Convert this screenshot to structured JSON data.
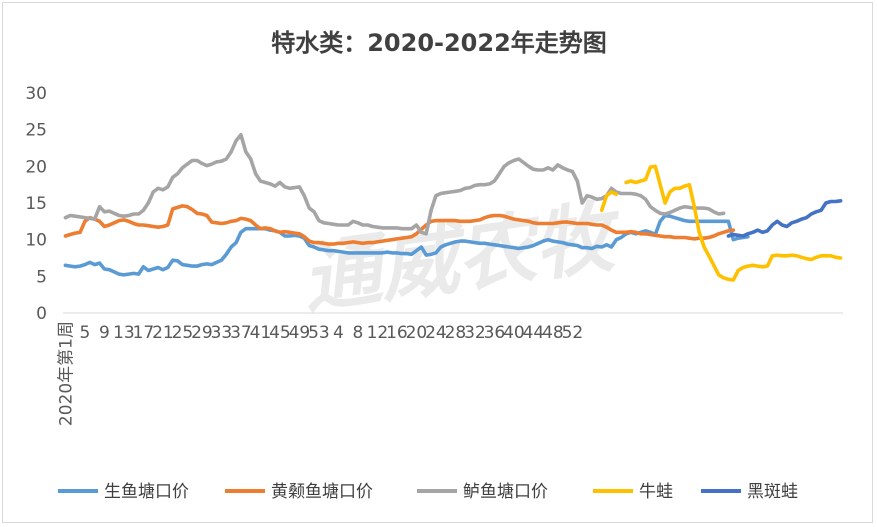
{
  "chart_data": {
    "type": "line",
    "title": "特水类：2020-2022年走势图",
    "watermark": "通威农牧",
    "xlabel": "",
    "ylabel": "",
    "ylim": [
      0,
      30
    ],
    "y_ticks": [
      "0",
      "5",
      "10",
      "15",
      "20",
      "25",
      "30"
    ],
    "x_first_label": "2020年第1周",
    "x_tick_labels": [
      "5",
      "9",
      "13",
      "17",
      "21",
      "25",
      "29",
      "33",
      "37",
      "41",
      "45",
      "49",
      "53",
      "4",
      "8",
      "12",
      "16",
      "20",
      "24",
      "28",
      "32",
      "36",
      "40",
      "44",
      "48",
      "52"
    ],
    "n_points": 160,
    "grid": false,
    "legend_position": "bottom",
    "series": [
      {
        "name": "生鱼塘口价",
        "color": "#5b9bd5",
        "values": [
          6.5,
          6.4,
          6.3,
          6.4,
          6.6,
          6.9,
          6.6,
          6.8,
          6.0,
          5.9,
          5.6,
          5.3,
          5.2,
          5.3,
          5.4,
          5.3,
          6.3,
          5.8,
          6.0,
          6.2,
          5.9,
          6.2,
          7.2,
          7.1,
          6.6,
          6.5,
          6.4,
          6.4,
          6.6,
          6.7,
          6.6,
          6.9,
          7.2,
          8.0,
          9.0,
          9.6,
          11.0,
          11.5,
          11.5,
          11.5,
          11.5,
          11.5,
          11.3,
          11.2,
          11.0,
          10.5,
          10.5,
          10.6,
          10.5,
          10.2,
          9.2,
          9.0,
          8.7,
          8.6,
          8.5,
          8.5,
          8.4,
          8.3,
          8.2,
          8.2,
          8.2,
          8.2,
          8.2,
          8.2,
          8.2,
          8.2,
          8.3,
          8.2,
          8.2,
          8.1,
          8.1,
          8.0,
          8.5,
          9.0,
          7.9,
          8.0,
          8.2,
          9.0,
          9.3,
          9.5,
          9.7,
          9.8,
          9.8,
          9.7,
          9.6,
          9.5,
          9.5,
          9.4,
          9.3,
          9.2,
          9.1,
          9.0,
          8.9,
          8.8,
          8.9,
          9.0,
          9.2,
          9.5,
          9.8,
          10.0,
          9.8,
          9.7,
          9.6,
          9.4,
          9.3,
          9.2,
          8.9,
          8.9,
          8.8,
          9.1,
          9.0,
          9.3,
          9.0,
          10.0,
          10.3,
          10.8,
          11.0,
          10.8,
          11.0,
          11.2,
          11.0,
          10.7,
          12.5,
          13.3,
          13.2,
          13.0,
          12.8,
          12.6,
          12.5,
          12.5,
          12.5,
          12.5,
          12.5,
          12.5,
          12.5,
          12.5,
          12.5,
          10.0,
          10.2,
          10.3,
          10.4
        ],
        "start_index": 0
      },
      {
        "name": "黄颡鱼塘口价",
        "color": "#ed7d31",
        "values": [
          10.5,
          10.7,
          10.9,
          11.0,
          12.5,
          13.0,
          12.8,
          12.5,
          11.8,
          12.0,
          12.3,
          12.6,
          12.7,
          12.5,
          12.2,
          12.0,
          12.0,
          11.9,
          11.8,
          11.7,
          11.8,
          12.0,
          14.2,
          14.4,
          14.6,
          14.5,
          14.1,
          13.6,
          13.5,
          13.3,
          12.4,
          12.3,
          12.2,
          12.3,
          12.5,
          12.6,
          12.9,
          12.8,
          12.6,
          12.0,
          11.5,
          11.6,
          11.5,
          11.2,
          11.0,
          11.1,
          11.0,
          10.9,
          10.8,
          10.4,
          9.8,
          9.6,
          9.6,
          9.5,
          9.4,
          9.4,
          9.5,
          9.5,
          9.6,
          9.7,
          9.6,
          9.5,
          9.6,
          9.6,
          9.7,
          9.8,
          9.9,
          10.0,
          10.1,
          10.2,
          10.3,
          10.4,
          10.8,
          11.4,
          12.0,
          12.5,
          12.6,
          12.6,
          12.6,
          12.6,
          12.6,
          12.5,
          12.5,
          12.5,
          12.6,
          12.7,
          13.0,
          13.2,
          13.3,
          13.3,
          13.2,
          13.0,
          12.8,
          12.7,
          12.6,
          12.5,
          12.3,
          12.2,
          12.2,
          12.2,
          12.2,
          12.3,
          12.4,
          12.4,
          12.3,
          12.2,
          12.2,
          12.2,
          12.1,
          12.0,
          12.0,
          11.7,
          11.3,
          11.0,
          11.0,
          11.0,
          11.1,
          11.0,
          10.8,
          10.8,
          10.7,
          10.6,
          10.5,
          10.4,
          10.4,
          10.3,
          10.3,
          10.3,
          10.2,
          10.1,
          10.2,
          10.2,
          10.3,
          10.5,
          10.8,
          11.0,
          11.2,
          11.3
        ],
        "start_index": 0
      },
      {
        "name": "鲈鱼塘口价",
        "color": "#a5a5a5",
        "values": [
          13.0,
          13.3,
          13.2,
          13.1,
          13.0,
          12.9,
          12.8,
          14.5,
          13.8,
          13.9,
          13.6,
          13.3,
          13.2,
          13.3,
          13.5,
          13.5,
          14.0,
          15.0,
          16.5,
          17.0,
          16.8,
          17.2,
          18.5,
          19.0,
          19.8,
          20.3,
          20.8,
          20.8,
          20.4,
          20.1,
          20.3,
          20.6,
          20.7,
          21.0,
          22.0,
          23.5,
          24.3,
          22.0,
          21.0,
          19.0,
          18.0,
          17.8,
          17.6,
          17.3,
          17.8,
          17.2,
          17.0,
          17.1,
          17.2,
          16.0,
          14.3,
          13.8,
          12.6,
          12.3,
          12.2,
          12.1,
          12.0,
          12.0,
          12.0,
          12.5,
          12.3,
          12.0,
          12.0,
          11.8,
          11.7,
          11.6,
          11.6,
          11.6,
          11.6,
          11.5,
          11.5,
          11.5,
          12.0,
          11.0,
          10.8,
          14.0,
          16.0,
          16.3,
          16.4,
          16.5,
          16.6,
          16.7,
          17.0,
          17.1,
          17.4,
          17.5,
          17.5,
          17.6,
          18.0,
          19.0,
          20.0,
          20.5,
          20.8,
          21.0,
          20.5,
          20.0,
          19.6,
          19.5,
          19.5,
          19.8,
          19.5,
          20.2,
          19.8,
          19.5,
          19.3,
          18.0,
          15.0,
          16.0,
          15.8,
          15.5,
          15.6,
          16.0,
          17.0,
          16.5,
          16.3,
          16.3,
          16.3,
          16.2,
          16.0,
          15.5,
          14.5,
          14.0,
          13.6,
          13.5,
          13.7,
          14.0,
          14.3,
          14.5,
          14.4,
          14.3,
          14.3,
          14.3,
          14.2,
          13.8,
          13.5,
          13.6
        ],
        "start_index": 0
      },
      {
        "name": "牛蛙",
        "color": "#ffc000",
        "values": [
          14.0,
          16.0,
          16.5,
          16.2,
          null,
          17.8,
          18.0,
          17.8,
          18.0,
          18.2,
          19.9,
          20.0,
          17.5,
          15.0,
          16.5,
          17.0,
          17.0,
          17.3,
          17.5,
          14.5,
          11.0,
          9.0,
          7.8,
          6.5,
          5.2,
          4.8,
          4.6,
          4.5,
          5.8,
          6.2,
          6.4,
          6.5,
          6.4,
          6.3,
          6.4,
          7.8,
          7.9,
          7.8,
          7.8,
          7.9,
          7.8,
          7.6,
          7.4,
          7.3,
          7.6,
          7.8,
          7.8,
          7.8,
          7.6,
          7.5
        ],
        "start_index": 110
      },
      {
        "name": "黑斑蛙",
        "color": "#4472c4",
        "values": [
          10.5,
          10.7,
          10.6,
          10.5,
          10.8,
          11.0,
          11.3,
          11.0,
          11.2,
          12.0,
          12.5,
          12.0,
          11.8,
          12.3,
          12.5,
          12.8,
          13.0,
          13.5,
          13.8,
          14.0,
          15.0,
          15.2,
          15.2,
          15.3
        ],
        "start_index": 136
      }
    ]
  }
}
